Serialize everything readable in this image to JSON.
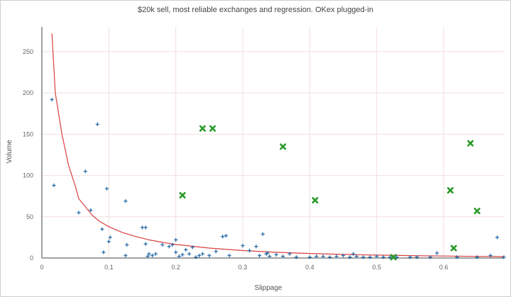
{
  "chart_data": {
    "type": "scatter",
    "title": "$20k sell, most reliable exchanges and regression. OKex plugged-in",
    "xlabel": "Slippage",
    "ylabel": "Volume",
    "xlim": [
      0,
      0.69
    ],
    "ylim": [
      0,
      280
    ],
    "xticks": [
      "0",
      "0.1",
      "0.2",
      "0.3",
      "0.4",
      "0.5",
      "0.6"
    ],
    "xtick_values": [
      0,
      0.1,
      0.2,
      0.3,
      0.4,
      0.5,
      0.6
    ],
    "yticks": [
      "0",
      "50",
      "100",
      "150",
      "200",
      "250"
    ],
    "ytick_values": [
      0,
      50,
      100,
      150,
      200,
      250
    ],
    "grid": true,
    "colors": {
      "blue": "#2e6fa8",
      "green": "#2a9a2a",
      "line": "#d9413f",
      "grid": "#f3dede"
    },
    "series": [
      {
        "marker": "plus",
        "color": "#2e6fa8",
        "points": [
          [
            0.015,
            192
          ],
          [
            0.018,
            88
          ],
          [
            0.055,
            55
          ],
          [
            0.065,
            105
          ],
          [
            0.073,
            58
          ],
          [
            0.083,
            162
          ],
          [
            0.09,
            35
          ],
          [
            0.092,
            7
          ],
          [
            0.097,
            84
          ],
          [
            0.1,
            20
          ],
          [
            0.102,
            25
          ],
          [
            0.125,
            69
          ],
          [
            0.127,
            16
          ],
          [
            0.125,
            3
          ],
          [
            0.15,
            37
          ],
          [
            0.155,
            37
          ],
          [
            0.155,
            17
          ],
          [
            0.16,
            5
          ],
          [
            0.158,
            2
          ],
          [
            0.165,
            3
          ],
          [
            0.17,
            5
          ],
          [
            0.18,
            16
          ],
          [
            0.19,
            14
          ],
          [
            0.195,
            16
          ],
          [
            0.2,
            22
          ],
          [
            0.2,
            7
          ],
          [
            0.205,
            2
          ],
          [
            0.21,
            4
          ],
          [
            0.215,
            10
          ],
          [
            0.22,
            5
          ],
          [
            0.225,
            13
          ],
          [
            0.23,
            1
          ],
          [
            0.235,
            3
          ],
          [
            0.24,
            5
          ],
          [
            0.25,
            3
          ],
          [
            0.26,
            8
          ],
          [
            0.27,
            26
          ],
          [
            0.275,
            27
          ],
          [
            0.28,
            3
          ],
          [
            0.3,
            15
          ],
          [
            0.31,
            9
          ],
          [
            0.32,
            14
          ],
          [
            0.325,
            3
          ],
          [
            0.33,
            29
          ],
          [
            0.335,
            5
          ],
          [
            0.337,
            6
          ],
          [
            0.34,
            2
          ],
          [
            0.35,
            4
          ],
          [
            0.36,
            2
          ],
          [
            0.37,
            5
          ],
          [
            0.38,
            1
          ],
          [
            0.4,
            1
          ],
          [
            0.41,
            2
          ],
          [
            0.42,
            2
          ],
          [
            0.43,
            1
          ],
          [
            0.44,
            2
          ],
          [
            0.45,
            3
          ],
          [
            0.46,
            1
          ],
          [
            0.465,
            5
          ],
          [
            0.47,
            2
          ],
          [
            0.48,
            1
          ],
          [
            0.49,
            1
          ],
          [
            0.5,
            2
          ],
          [
            0.51,
            1
          ],
          [
            0.52,
            1
          ],
          [
            0.53,
            1
          ],
          [
            0.55,
            1
          ],
          [
            0.56,
            1
          ],
          [
            0.58,
            1
          ],
          [
            0.59,
            6
          ],
          [
            0.62,
            1
          ],
          [
            0.65,
            1
          ],
          [
            0.67,
            3
          ],
          [
            0.68,
            25
          ],
          [
            0.69,
            1
          ]
        ]
      },
      {
        "marker": "x",
        "color": "#2a9a2a",
        "points": [
          [
            0.21,
            76
          ],
          [
            0.24,
            157
          ],
          [
            0.255,
            157
          ],
          [
            0.36,
            135
          ],
          [
            0.408,
            70
          ],
          [
            0.525,
            1
          ],
          [
            0.61,
            82
          ],
          [
            0.615,
            12
          ],
          [
            0.64,
            139
          ],
          [
            0.65,
            57
          ]
        ]
      }
    ],
    "regression": [
      [
        0.015,
        272
      ],
      [
        0.02,
        200
      ],
      [
        0.03,
        150
      ],
      [
        0.04,
        112
      ],
      [
        0.05,
        87
      ],
      [
        0.055,
        72
      ],
      [
        0.065,
        62
      ],
      [
        0.075,
        52
      ],
      [
        0.085,
        45
      ],
      [
        0.1,
        38
      ],
      [
        0.12,
        31
      ],
      [
        0.14,
        26
      ],
      [
        0.16,
        22
      ],
      [
        0.18,
        19
      ],
      [
        0.2,
        16.5
      ],
      [
        0.25,
        12
      ],
      [
        0.3,
        9
      ],
      [
        0.35,
        7
      ],
      [
        0.4,
        5.5
      ],
      [
        0.45,
        4.4
      ],
      [
        0.5,
        3.5
      ],
      [
        0.55,
        2.9
      ],
      [
        0.6,
        2.4
      ],
      [
        0.65,
        2
      ],
      [
        0.69,
        1.7
      ]
    ]
  }
}
